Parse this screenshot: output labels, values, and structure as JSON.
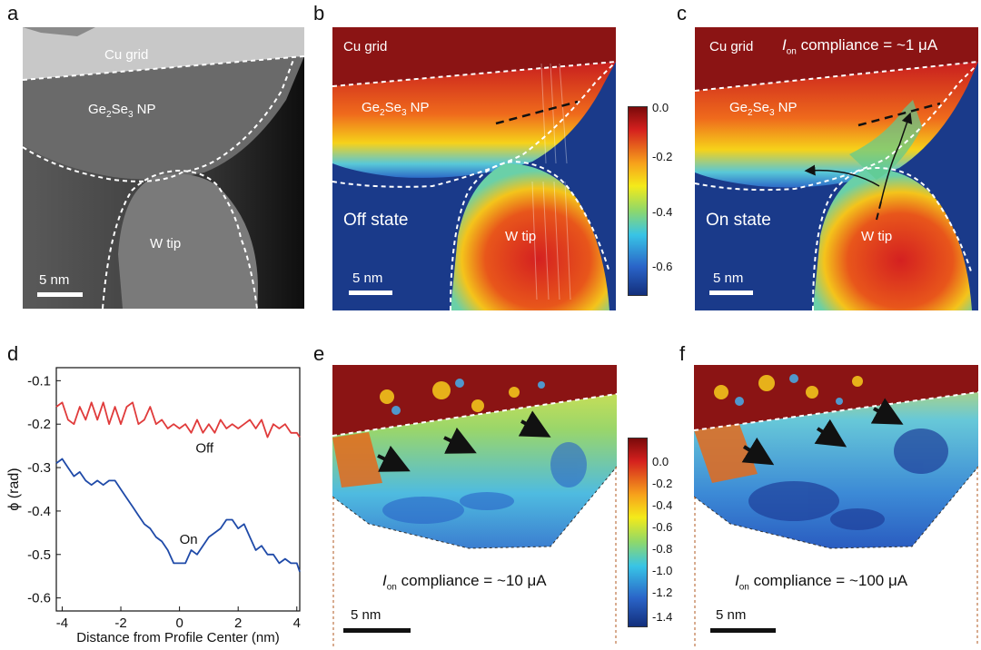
{
  "panels": {
    "a": {
      "letter": "a",
      "cu_grid": "Cu grid",
      "np": "Ge",
      "np_sub1": "2",
      "np_mid": "Se",
      "np_sub2": "3",
      "np_tail": " NP",
      "w_tip": "W tip",
      "scale": "5 nm"
    },
    "b": {
      "letter": "b",
      "cu_grid": "Cu grid",
      "np": "Ge",
      "np_sub1": "2",
      "np_mid": "Se",
      "np_sub2": "3",
      "np_tail": " NP",
      "w_tip": "W tip",
      "state": "Off state",
      "scale": "5 nm"
    },
    "c": {
      "letter": "c",
      "cu_grid": "Cu grid",
      "compliance_i": "I",
      "compliance_sub": "on",
      "compliance_rest": " compliance = ~1 μA",
      "np": "Ge",
      "np_sub1": "2",
      "np_mid": "Se",
      "np_sub2": "3",
      "np_tail": " NP",
      "w_tip": "W tip",
      "state": "On state",
      "scale": "5 nm"
    },
    "d": {
      "letter": "d"
    },
    "e": {
      "letter": "e",
      "compliance_i": "I",
      "compliance_sub": "on",
      "compliance_rest": " compliance = ~10 μA",
      "scale": "5 nm"
    },
    "f": {
      "letter": "f",
      "compliance_i": "I",
      "compliance_sub": "on",
      "compliance_rest": " compliance = ~100 μA",
      "scale": "5 nm"
    }
  },
  "colorbar1": {
    "ticks": [
      "0.0",
      "-0.2",
      "-0.4",
      "-0.6"
    ]
  },
  "colorbar2": {
    "ticks": [
      "0.0",
      "-0.2",
      "-0.4",
      "-0.6",
      "-0.8",
      "-1.0",
      "-1.2",
      "-1.4"
    ]
  },
  "colors": {
    "dark_red": "#8b1414",
    "dark_blue": "#1a3a8a",
    "off_line": "#e03b3b",
    "on_line": "#1f4aa8"
  },
  "chart_data": {
    "type": "line",
    "title": "",
    "xlabel": "Distance from Profile Center (nm)",
    "ylabel": "ϕ (rad)",
    "xlim": [
      -4.2,
      4.1
    ],
    "ylim": [
      -0.63,
      -0.07
    ],
    "xticks": [
      "-4",
      "-2",
      "0",
      "2",
      "4"
    ],
    "yticks": [
      "-0.1",
      "-0.2",
      "-0.3",
      "-0.4",
      "-0.5",
      "-0.6"
    ],
    "series": [
      {
        "name": "Off",
        "color": "#e03b3b",
        "x": [
          -4.2,
          -4.0,
          -3.8,
          -3.6,
          -3.4,
          -3.2,
          -3.0,
          -2.8,
          -2.6,
          -2.4,
          -2.2,
          -2.0,
          -1.8,
          -1.6,
          -1.4,
          -1.2,
          -1.0,
          -0.8,
          -0.6,
          -0.4,
          -0.2,
          0.0,
          0.2,
          0.4,
          0.6,
          0.8,
          1.0,
          1.2,
          1.4,
          1.6,
          1.8,
          2.0,
          2.2,
          2.4,
          2.6,
          2.8,
          3.0,
          3.2,
          3.4,
          3.6,
          3.8,
          4.0,
          4.1
        ],
        "values": [
          -0.16,
          -0.15,
          -0.19,
          -0.2,
          -0.16,
          -0.19,
          -0.15,
          -0.19,
          -0.15,
          -0.2,
          -0.16,
          -0.2,
          -0.16,
          -0.15,
          -0.2,
          -0.19,
          -0.16,
          -0.2,
          -0.19,
          -0.21,
          -0.2,
          -0.21,
          -0.2,
          -0.22,
          -0.19,
          -0.22,
          -0.2,
          -0.22,
          -0.19,
          -0.21,
          -0.2,
          -0.21,
          -0.2,
          -0.19,
          -0.21,
          -0.19,
          -0.23,
          -0.2,
          -0.21,
          -0.2,
          -0.22,
          -0.22,
          -0.23
        ]
      },
      {
        "name": "On",
        "color": "#1f4aa8",
        "x": [
          -4.2,
          -4.0,
          -3.8,
          -3.6,
          -3.4,
          -3.2,
          -3.0,
          -2.8,
          -2.6,
          -2.4,
          -2.2,
          -2.0,
          -1.8,
          -1.6,
          -1.4,
          -1.2,
          -1.0,
          -0.8,
          -0.6,
          -0.4,
          -0.2,
          0.0,
          0.2,
          0.4,
          0.6,
          0.8,
          1.0,
          1.2,
          1.4,
          1.6,
          1.8,
          2.0,
          2.2,
          2.4,
          2.6,
          2.8,
          3.0,
          3.2,
          3.4,
          3.6,
          3.8,
          4.0,
          4.1
        ],
        "values": [
          -0.29,
          -0.28,
          -0.3,
          -0.32,
          -0.31,
          -0.33,
          -0.34,
          -0.33,
          -0.34,
          -0.33,
          -0.33,
          -0.35,
          -0.37,
          -0.39,
          -0.41,
          -0.43,
          -0.44,
          -0.46,
          -0.47,
          -0.49,
          -0.52,
          -0.52,
          -0.52,
          -0.49,
          -0.5,
          -0.48,
          -0.46,
          -0.45,
          -0.44,
          -0.42,
          -0.42,
          -0.44,
          -0.43,
          -0.46,
          -0.49,
          -0.48,
          -0.5,
          -0.5,
          -0.52,
          -0.51,
          -0.52,
          -0.52,
          -0.54
        ]
      }
    ],
    "annotations": [
      {
        "text": "Off"
      },
      {
        "text": "On"
      }
    ]
  }
}
